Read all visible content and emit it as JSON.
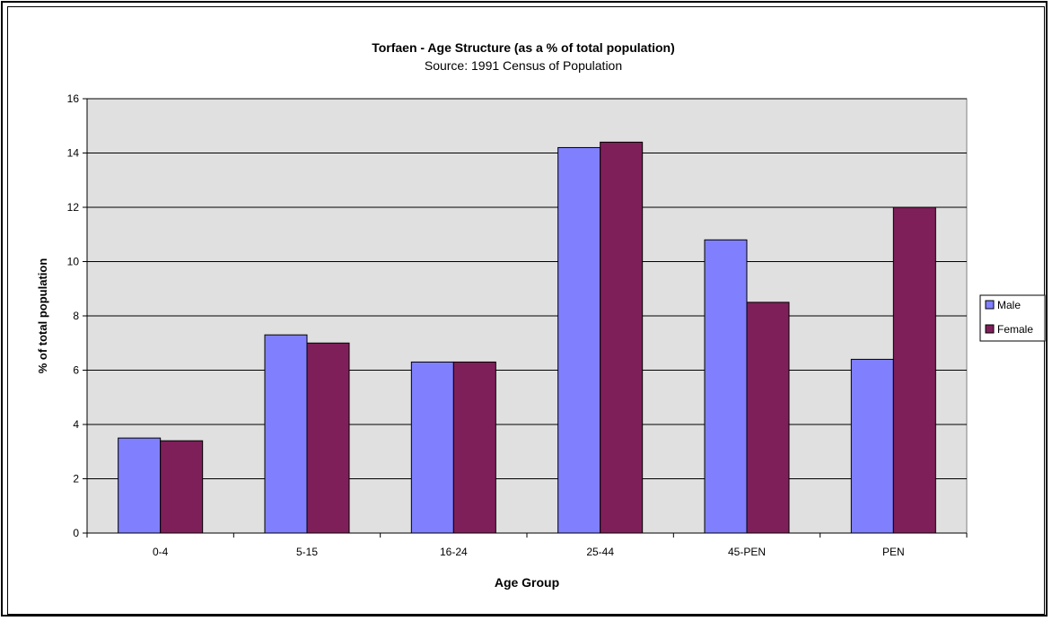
{
  "chart_data": {
    "type": "bar",
    "title": "Torfaen - Age Structure (as a % of total population)",
    "subtitle": "Source: 1991 Census of Population",
    "xlabel": "Age Group",
    "ylabel": "% of total population",
    "categories": [
      "0-4",
      "5-15",
      "16-24",
      "25-44",
      "45-PEN",
      "PEN"
    ],
    "series": [
      {
        "name": "Male",
        "values": [
          3.5,
          7.3,
          6.3,
          14.2,
          10.8,
          6.4
        ]
      },
      {
        "name": "Female",
        "values": [
          3.4,
          7.0,
          6.3,
          14.4,
          8.5,
          12.0
        ]
      }
    ],
    "ylim": [
      0,
      16
    ],
    "yticks": [
      0,
      2,
      4,
      6,
      8,
      10,
      12,
      14,
      16
    ],
    "grid": true,
    "legend_position": "right",
    "colors": {
      "Male": "#8080ff",
      "Female": "#7f1f5a",
      "plot_background": "#e0e0e0",
      "gridline": "#000000"
    }
  }
}
